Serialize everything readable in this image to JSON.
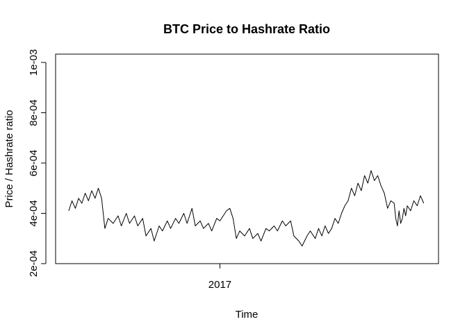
{
  "chart_data": {
    "type": "line",
    "title": "BTC Price to Hashrate Ratio",
    "xlabel": "Time",
    "ylabel": "Price / Hashrate ratio",
    "xlim": [
      2016.0,
      2018.33
    ],
    "ylim": [
      0.0002,
      0.001
    ],
    "x_ticks": [
      {
        "value": 2017,
        "label": "2017"
      }
    ],
    "y_ticks": [
      {
        "value": 0.0002,
        "label": "2e-04"
      },
      {
        "value": 0.0004,
        "label": "4e-04"
      },
      {
        "value": 0.0006,
        "label": "6e-04"
      },
      {
        "value": 0.0008,
        "label": "8e-04"
      },
      {
        "value": 0.001,
        "label": "1e-03"
      }
    ],
    "grid": false,
    "legend": "none",
    "line_color": "#000000",
    "series": [
      {
        "x": [
          2016.08,
          2016.1,
          2016.12,
          2016.14,
          2016.16,
          2016.18,
          2016.2,
          2016.22,
          2016.24,
          2016.26,
          2016.28,
          2016.3,
          2016.32,
          2016.35,
          2016.38,
          2016.4,
          2016.43,
          2016.45,
          2016.48,
          2016.5,
          2016.53,
          2016.55,
          2016.58,
          2016.6,
          2016.63,
          2016.65,
          2016.68,
          2016.7,
          2016.73,
          2016.75,
          2016.78,
          2016.8,
          2016.83,
          2016.85,
          2016.88,
          2016.9,
          2016.93,
          2016.95,
          2016.98,
          2017.0,
          2017.02,
          2017.04,
          2017.06,
          2017.08,
          2017.1,
          2017.12,
          2017.15,
          2017.18,
          2017.2,
          2017.23,
          2017.25,
          2017.28,
          2017.3,
          2017.33,
          2017.35,
          2017.38,
          2017.4,
          2017.43,
          2017.45,
          2017.48,
          2017.5,
          2017.53,
          2017.55,
          2017.58,
          2017.6,
          2017.62,
          2017.64,
          2017.66,
          2017.68,
          2017.7,
          2017.72,
          2017.74,
          2017.76,
          2017.78,
          2017.8,
          2017.82,
          2017.84,
          2017.86,
          2017.88,
          2017.9,
          2017.92,
          2017.94,
          2017.96,
          2017.98,
          2018.0,
          2018.02,
          2018.04,
          2018.06,
          2018.07,
          2018.08,
          2018.09,
          2018.1,
          2018.11,
          2018.12,
          2018.13,
          2018.14,
          2018.16,
          2018.18,
          2018.2,
          2018.22,
          2018.24
        ],
        "y": [
          0.00041,
          0.00045,
          0.00042,
          0.00046,
          0.00044,
          0.00048,
          0.00045,
          0.00049,
          0.00046,
          0.0005,
          0.00046,
          0.00034,
          0.00038,
          0.00036,
          0.00039,
          0.00035,
          0.0004,
          0.00036,
          0.00039,
          0.00035,
          0.00038,
          0.00031,
          0.00034,
          0.00029,
          0.00035,
          0.00033,
          0.00037,
          0.00034,
          0.00038,
          0.00036,
          0.0004,
          0.00036,
          0.00042,
          0.00035,
          0.00037,
          0.00034,
          0.00036,
          0.00033,
          0.00038,
          0.00037,
          0.00039,
          0.00041,
          0.00042,
          0.00038,
          0.0003,
          0.00033,
          0.00031,
          0.00034,
          0.0003,
          0.00032,
          0.00029,
          0.00034,
          0.00033,
          0.00035,
          0.00033,
          0.00037,
          0.00035,
          0.00037,
          0.00031,
          0.00029,
          0.00027,
          0.00031,
          0.00033,
          0.0003,
          0.00034,
          0.00031,
          0.00035,
          0.00032,
          0.00034,
          0.00038,
          0.00036,
          0.0004,
          0.00043,
          0.00045,
          0.0005,
          0.00047,
          0.00052,
          0.00049,
          0.00055,
          0.00052,
          0.00057,
          0.00053,
          0.00055,
          0.00051,
          0.00048,
          0.00042,
          0.00045,
          0.00044,
          0.00038,
          0.00035,
          0.00041,
          0.00036,
          0.00038,
          0.00042,
          0.00039,
          0.00043,
          0.00041,
          0.00045,
          0.00043,
          0.00047,
          0.00044
        ]
      }
    ]
  }
}
